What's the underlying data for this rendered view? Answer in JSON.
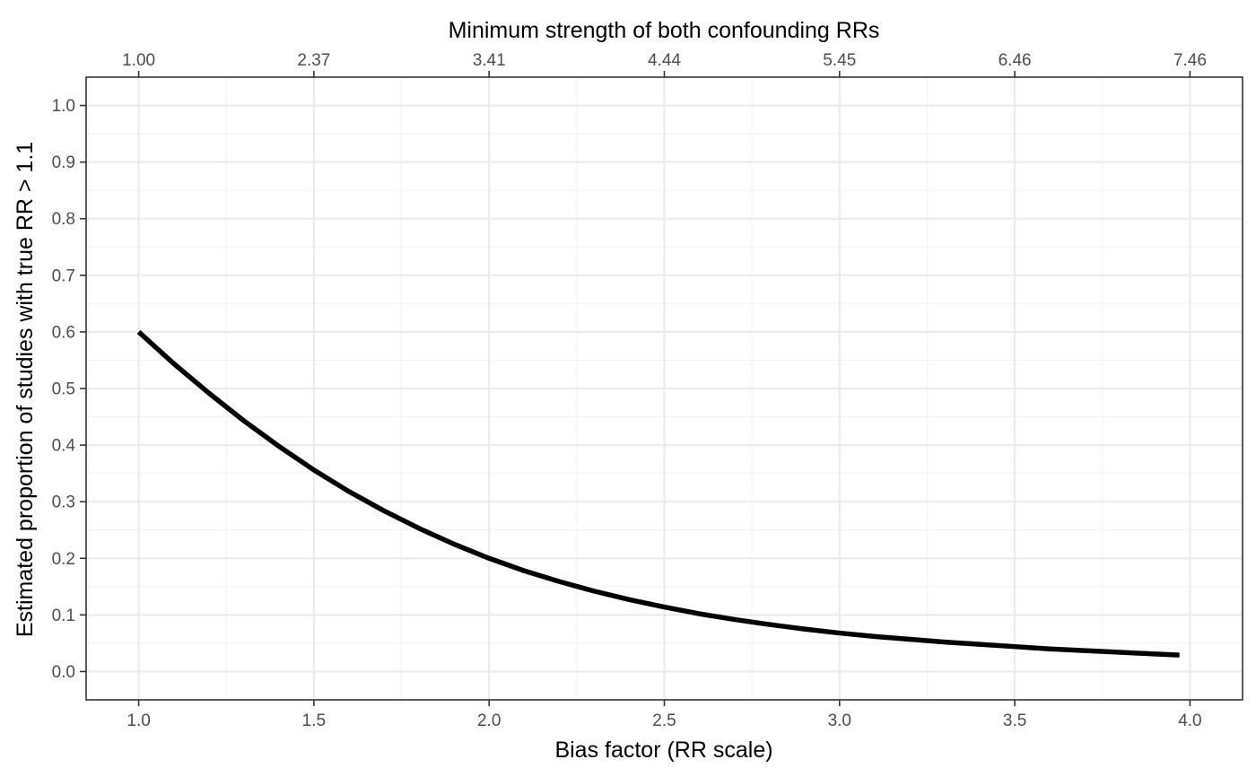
{
  "chart_data": {
    "type": "line",
    "title": "",
    "xlabel": "Bias factor (RR scale)",
    "ylabel": "Estimated proportion of studies with true RR > 1.1",
    "x2label": "Minimum strength of both confounding RRs",
    "xlim": [
      0.85,
      4.15
    ],
    "ylim": [
      -0.05,
      1.05
    ],
    "x_ticks": [
      1.0,
      1.5,
      2.0,
      2.5,
      3.0,
      3.5,
      4.0
    ],
    "x_tick_labels": [
      "1.0",
      "1.5",
      "2.0",
      "2.5",
      "3.0",
      "3.5",
      "4.0"
    ],
    "x2_tick_positions": [
      1.0,
      1.5,
      2.0,
      2.5,
      3.0,
      3.5,
      4.0
    ],
    "x2_tick_labels": [
      "1.00",
      "2.37",
      "3.41",
      "4.44",
      "5.45",
      "6.46",
      "7.46"
    ],
    "y_ticks": [
      0.0,
      0.1,
      0.2,
      0.3,
      0.4,
      0.5,
      0.6,
      0.7,
      0.8,
      0.9,
      1.0
    ],
    "y_tick_labels": [
      "0.0",
      "0.1",
      "0.2",
      "0.3",
      "0.4",
      "0.5",
      "0.6",
      "0.7",
      "0.8",
      "0.9",
      "1.0"
    ],
    "grid": true,
    "series": [
      {
        "color": "#000000",
        "x": [
          1.0,
          1.1,
          1.2,
          1.3,
          1.4,
          1.5,
          1.6,
          1.7,
          1.8,
          1.9,
          2.0,
          2.1,
          2.2,
          2.3,
          2.4,
          2.5,
          2.6,
          2.7,
          2.8,
          2.9,
          3.0,
          3.1,
          3.2,
          3.3,
          3.4,
          3.5,
          3.6,
          3.7,
          3.8,
          3.9,
          3.97
        ],
        "y": [
          0.6,
          0.544,
          0.492,
          0.443,
          0.398,
          0.356,
          0.318,
          0.284,
          0.253,
          0.225,
          0.2,
          0.178,
          0.159,
          0.142,
          0.127,
          0.114,
          0.102,
          0.092,
          0.083,
          0.075,
          0.068,
          0.062,
          0.057,
          0.052,
          0.048,
          0.044,
          0.04,
          0.037,
          0.034,
          0.031,
          0.029
        ]
      }
    ]
  }
}
